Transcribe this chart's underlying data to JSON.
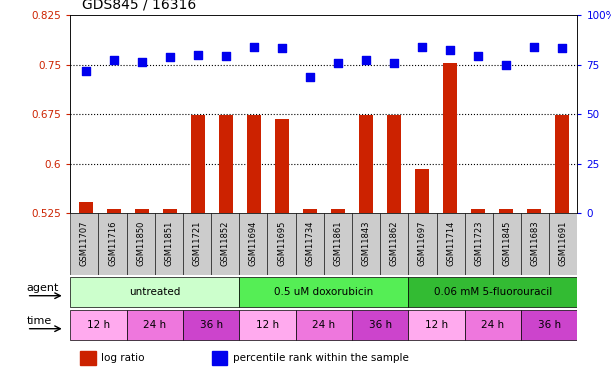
{
  "title": "GDS845 / 16316",
  "samples": [
    "GSM11707",
    "GSM11716",
    "GSM11850",
    "GSM11851",
    "GSM11721",
    "GSM11852",
    "GSM11694",
    "GSM11695",
    "GSM11734",
    "GSM11861",
    "GSM11843",
    "GSM11862",
    "GSM11697",
    "GSM11714",
    "GSM11723",
    "GSM11845",
    "GSM11683",
    "GSM11691"
  ],
  "log_ratio": [
    0.542,
    0.531,
    0.531,
    0.531,
    0.674,
    0.674,
    0.674,
    0.667,
    0.531,
    0.531,
    0.674,
    0.674,
    0.592,
    0.752,
    0.531,
    0.531,
    0.531,
    0.674
  ],
  "percentile": [
    72.0,
    77.5,
    76.2,
    79.0,
    79.6,
    79.5,
    84.0,
    83.6,
    68.6,
    76.0,
    77.5,
    76.0,
    84.0,
    82.2,
    79.5,
    75.0,
    84.0,
    83.6
  ],
  "bar_color": "#cc2200",
  "scatter_color": "#0000ee",
  "left_ylim": [
    0.525,
    0.825
  ],
  "right_ylim": [
    0,
    100
  ],
  "left_yticks": [
    0.525,
    0.6,
    0.675,
    0.75,
    0.825
  ],
  "left_yticklabels": [
    "0.525",
    "0.6",
    "0.675",
    "0.75",
    "0.825"
  ],
  "right_yticks": [
    0,
    25,
    50,
    75,
    100
  ],
  "right_yticklabels": [
    "0",
    "25",
    "50",
    "75",
    "100%"
  ],
  "hlines": [
    0.75,
    0.675,
    0.6
  ],
  "agent_groups": [
    {
      "label": "untreated",
      "start": 0,
      "end": 6,
      "color": "#ccffcc"
    },
    {
      "label": "0.5 uM doxorubicin",
      "start": 6,
      "end": 12,
      "color": "#55ee55"
    },
    {
      "label": "0.06 mM 5-fluorouracil",
      "start": 12,
      "end": 18,
      "color": "#33bb33"
    }
  ],
  "time_groups": [
    {
      "label": "12 h",
      "start": 0,
      "end": 2,
      "color": "#ffaaee"
    },
    {
      "label": "24 h",
      "start": 2,
      "end": 4,
      "color": "#ee77dd"
    },
    {
      "label": "36 h",
      "start": 4,
      "end": 6,
      "color": "#cc44cc"
    },
    {
      "label": "12 h",
      "start": 6,
      "end": 8,
      "color": "#ffaaee"
    },
    {
      "label": "24 h",
      "start": 8,
      "end": 10,
      "color": "#ee77dd"
    },
    {
      "label": "36 h",
      "start": 10,
      "end": 12,
      "color": "#cc44cc"
    },
    {
      "label": "12 h",
      "start": 12,
      "end": 14,
      "color": "#ffaaee"
    },
    {
      "label": "24 h",
      "start": 14,
      "end": 16,
      "color": "#ee77dd"
    },
    {
      "label": "36 h",
      "start": 16,
      "end": 18,
      "color": "#cc44cc"
    }
  ],
  "bar_bottom": 0.525,
  "bar_width": 0.5,
  "left_tick_color": "#cc2200",
  "right_tick_color": "#0000ee",
  "agent_label": "agent",
  "time_label": "time",
  "sample_bg_color": "#cccccc"
}
